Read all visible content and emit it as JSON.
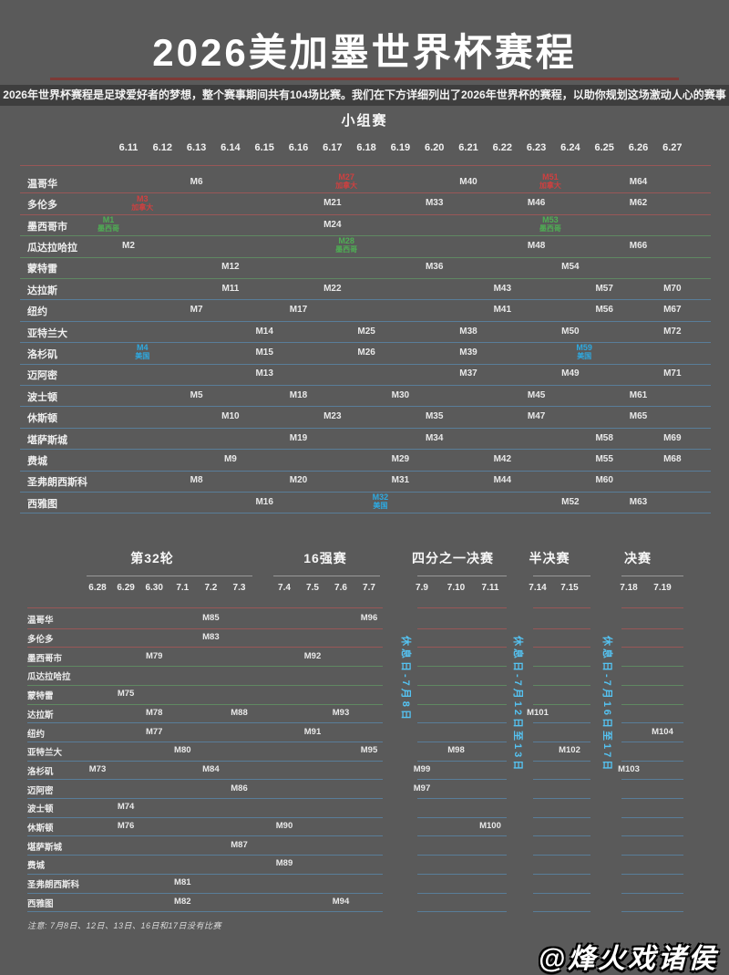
{
  "title": "2026美加墨世界杯赛程",
  "subtitle": "2026年世界杯赛程是足球爱好者的梦想，整个赛事期间共有104场比赛。我们在下方详细列出了2026年世界杯的赛程，以助你规划这场激动人心的赛事",
  "note": "注意: 7月8日、12日、13日、16日和17日没有比赛",
  "watermark": "@烽火戏诸侯",
  "colors": {
    "background": "#5a5a5a",
    "subtitle_bar": "#3e3e3e",
    "title_rule": "#7d3a36",
    "canada": "#cf4040",
    "mexico": "#4fae54",
    "usa": "#2ea9e0",
    "rest_day_text": "#55c3f2",
    "line_canada": "rgba(195,85,85,0.6)",
    "line_mexico": "rgba(100,175,105,0.55)",
    "line_usa": "rgba(90,155,205,0.55)"
  },
  "country_labels": {
    "canada": "加拿大",
    "mexico": "墨西哥",
    "usa": "美国"
  },
  "chart_data": [
    {
      "type": "table",
      "title": "小组赛",
      "dates": [
        "6.11",
        "6.12",
        "6.13",
        "6.14",
        "6.15",
        "6.16",
        "6.17",
        "6.18",
        "6.19",
        "6.20",
        "6.21",
        "6.22",
        "6.23",
        "6.24",
        "6.25",
        "6.26",
        "6.27"
      ],
      "rows": [
        {
          "city": "温哥华",
          "country": "canada",
          "matches": [
            {
              "m": "M6",
              "date": "6.13"
            },
            {
              "m": "M27",
              "date": "6.18",
              "hl": "canada"
            },
            {
              "m": "M40",
              "date": "6.21"
            },
            {
              "m": "M51",
              "date": "6.24",
              "hl": "canada"
            },
            {
              "m": "M64",
              "date": "6.26"
            }
          ]
        },
        {
          "city": "多伦多",
          "country": "canada",
          "matches": [
            {
              "m": "M3",
              "date": "6.12",
              "hl": "canada"
            },
            {
              "m": "M21",
              "date": "6.17"
            },
            {
              "m": "M33",
              "date": "6.20"
            },
            {
              "m": "M46",
              "date": "6.23"
            },
            {
              "m": "M62",
              "date": "6.26"
            }
          ]
        },
        {
          "city": "墨西哥市",
          "country": "mexico",
          "matches": [
            {
              "m": "M1",
              "date": "6.11",
              "hl": "mexico"
            },
            {
              "m": "M24",
              "date": "6.17"
            },
            {
              "m": "M53",
              "date": "6.24",
              "hl": "mexico"
            }
          ]
        },
        {
          "city": "瓜达拉哈拉",
          "country": "mexico",
          "matches": [
            {
              "m": "M2",
              "date": "6.11"
            },
            {
              "m": "M28",
              "date": "6.18",
              "hl": "mexico"
            },
            {
              "m": "M48",
              "date": "6.23"
            },
            {
              "m": "M66",
              "date": "6.26"
            }
          ]
        },
        {
          "city": "蒙特雷",
          "country": "mexico",
          "matches": [
            {
              "m": "M12",
              "date": "6.14"
            },
            {
              "m": "M36",
              "date": "6.20"
            },
            {
              "m": "M54",
              "date": "6.24"
            }
          ]
        },
        {
          "city": "达拉斯",
          "country": "usa",
          "matches": [
            {
              "m": "M11",
              "date": "6.14"
            },
            {
              "m": "M22",
              "date": "6.17"
            },
            {
              "m": "M43",
              "date": "6.22"
            },
            {
              "m": "M57",
              "date": "6.25"
            },
            {
              "m": "M70",
              "date": "6.27"
            }
          ]
        },
        {
          "city": "纽约",
          "country": "usa",
          "matches": [
            {
              "m": "M7",
              "date": "6.13"
            },
            {
              "m": "M17",
              "date": "6.16"
            },
            {
              "m": "M41",
              "date": "6.22"
            },
            {
              "m": "M56",
              "date": "6.25"
            },
            {
              "m": "M67",
              "date": "6.27"
            }
          ]
        },
        {
          "city": "亚特兰大",
          "country": "usa",
          "matches": [
            {
              "m": "M14",
              "date": "6.15"
            },
            {
              "m": "M25",
              "date": "6.18"
            },
            {
              "m": "M38",
              "date": "6.21"
            },
            {
              "m": "M50",
              "date": "6.24"
            },
            {
              "m": "M72",
              "date": "6.27"
            }
          ]
        },
        {
          "city": "洛杉矶",
          "country": "usa",
          "matches": [
            {
              "m": "M4",
              "date": "6.12",
              "hl": "usa"
            },
            {
              "m": "M15",
              "date": "6.15"
            },
            {
              "m": "M26",
              "date": "6.18"
            },
            {
              "m": "M39",
              "date": "6.21"
            },
            {
              "m": "M59",
              "date": "6.25",
              "hl": "usa"
            }
          ]
        },
        {
          "city": "迈阿密",
          "country": "usa",
          "matches": [
            {
              "m": "M13",
              "date": "6.15"
            },
            {
              "m": "M37",
              "date": "6.21"
            },
            {
              "m": "M49",
              "date": "6.24"
            },
            {
              "m": "M71",
              "date": "6.27"
            }
          ]
        },
        {
          "city": "波士顿",
          "country": "usa",
          "matches": [
            {
              "m": "M5",
              "date": "6.13"
            },
            {
              "m": "M18",
              "date": "6.16"
            },
            {
              "m": "M30",
              "date": "6.19"
            },
            {
              "m": "M45",
              "date": "6.23"
            },
            {
              "m": "M61",
              "date": "6.26"
            }
          ]
        },
        {
          "city": "休斯顿",
          "country": "usa",
          "matches": [
            {
              "m": "M10",
              "date": "6.14"
            },
            {
              "m": "M23",
              "date": "6.17"
            },
            {
              "m": "M35",
              "date": "6.20"
            },
            {
              "m": "M47",
              "date": "6.23"
            },
            {
              "m": "M65",
              "date": "6.26"
            }
          ]
        },
        {
          "city": "堪萨斯城",
          "country": "usa",
          "matches": [
            {
              "m": "M19",
              "date": "6.16"
            },
            {
              "m": "M34",
              "date": "6.20"
            },
            {
              "m": "M58",
              "date": "6.25"
            },
            {
              "m": "M69",
              "date": "6.27"
            }
          ]
        },
        {
          "city": "费城",
          "country": "usa",
          "matches": [
            {
              "m": "M9",
              "date": "6.14"
            },
            {
              "m": "M29",
              "date": "6.19"
            },
            {
              "m": "M42",
              "date": "6.22"
            },
            {
              "m": "M55",
              "date": "6.25"
            },
            {
              "m": "M68",
              "date": "6.27"
            }
          ]
        },
        {
          "city": "圣弗朗西斯科",
          "country": "usa",
          "matches": [
            {
              "m": "M8",
              "date": "6.13"
            },
            {
              "m": "M20",
              "date": "6.16"
            },
            {
              "m": "M31",
              "date": "6.19"
            },
            {
              "m": "M44",
              "date": "6.22"
            },
            {
              "m": "M60",
              "date": "6.25"
            }
          ]
        },
        {
          "city": "西雅图",
          "country": "usa",
          "matches": [
            {
              "m": "M16",
              "date": "6.15"
            },
            {
              "m": "M32",
              "date": "6.19",
              "hl": "usa"
            },
            {
              "m": "M52",
              "date": "6.24"
            },
            {
              "m": "M63",
              "date": "6.26"
            }
          ]
        }
      ]
    },
    {
      "type": "table",
      "title": "淘汰赛",
      "groups": [
        {
          "title": "第32轮",
          "dates": [
            "6.28",
            "6.29",
            "6.30",
            "7.1",
            "7.2",
            "7.3"
          ]
        },
        {
          "title": "16强赛",
          "dates": [
            "7.4",
            "7.5",
            "7.6",
            "7.7"
          ]
        },
        {
          "title": "四分之一决赛",
          "dates": [
            "7.9",
            "7.10",
            "7.11"
          ]
        },
        {
          "title": "半决赛",
          "dates": [
            "7.14",
            "7.15"
          ]
        },
        {
          "title": "决赛",
          "dates": [
            "7.18",
            "7.19"
          ]
        }
      ],
      "rest_days": [
        "休息日-7月8日",
        "休息日-7月12日至13日",
        "休息日-7月16日至17日"
      ],
      "rows": [
        {
          "city": "温哥华",
          "country": "canada",
          "matches": [
            {
              "m": "M85",
              "date": "7.2"
            },
            {
              "m": "M96",
              "date": "7.7"
            }
          ]
        },
        {
          "city": "多伦多",
          "country": "canada",
          "matches": [
            {
              "m": "M83",
              "date": "7.2"
            }
          ]
        },
        {
          "city": "墨西哥市",
          "country": "mexico",
          "matches": [
            {
              "m": "M79",
              "date": "6.30"
            },
            {
              "m": "M92",
              "date": "7.5"
            }
          ]
        },
        {
          "city": "瓜达拉哈拉",
          "country": "mexico",
          "matches": []
        },
        {
          "city": "蒙特雷",
          "country": "mexico",
          "matches": [
            {
              "m": "M75",
              "date": "6.29"
            }
          ]
        },
        {
          "city": "达拉斯",
          "country": "usa",
          "matches": [
            {
              "m": "M78",
              "date": "6.30"
            },
            {
              "m": "M88",
              "date": "7.3"
            },
            {
              "m": "M93",
              "date": "7.6"
            },
            {
              "m": "M101",
              "date": "7.14"
            }
          ]
        },
        {
          "city": "纽约",
          "country": "usa",
          "matches": [
            {
              "m": "M77",
              "date": "6.30"
            },
            {
              "m": "M91",
              "date": "7.5"
            },
            {
              "m": "M104",
              "date": "7.19"
            }
          ]
        },
        {
          "city": "亚特兰大",
          "country": "usa",
          "matches": [
            {
              "m": "M80",
              "date": "7.1"
            },
            {
              "m": "M95",
              "date": "7.7"
            },
            {
              "m": "M98",
              "date": "7.10"
            },
            {
              "m": "M102",
              "date": "7.15"
            }
          ]
        },
        {
          "city": "洛杉矶",
          "country": "usa",
          "matches": [
            {
              "m": "M73",
              "date": "6.28"
            },
            {
              "m": "M84",
              "date": "7.2"
            },
            {
              "m": "M99",
              "date": "7.9"
            },
            {
              "m": "M103",
              "date": "7.18"
            }
          ]
        },
        {
          "city": "迈阿密",
          "country": "usa",
          "matches": [
            {
              "m": "M86",
              "date": "7.3"
            },
            {
              "m": "M97",
              "date": "7.9"
            }
          ]
        },
        {
          "city": "波士顿",
          "country": "usa",
          "matches": [
            {
              "m": "M74",
              "date": "6.29"
            }
          ]
        },
        {
          "city": "休斯顿",
          "country": "usa",
          "matches": [
            {
              "m": "M76",
              "date": "6.29"
            },
            {
              "m": "M90",
              "date": "7.4"
            },
            {
              "m": "M100",
              "date": "7.11"
            }
          ]
        },
        {
          "city": "堪萨斯城",
          "country": "usa",
          "matches": [
            {
              "m": "M87",
              "date": "7.3"
            }
          ]
        },
        {
          "city": "费城",
          "country": "usa",
          "matches": [
            {
              "m": "M89",
              "date": "7.4"
            }
          ]
        },
        {
          "city": "圣弗朗西斯科",
          "country": "usa",
          "matches": [
            {
              "m": "M81",
              "date": "7.1"
            }
          ]
        },
        {
          "city": "西雅图",
          "country": "usa",
          "matches": [
            {
              "m": "M82",
              "date": "7.1"
            },
            {
              "m": "M94",
              "date": "7.6"
            }
          ]
        }
      ]
    }
  ]
}
